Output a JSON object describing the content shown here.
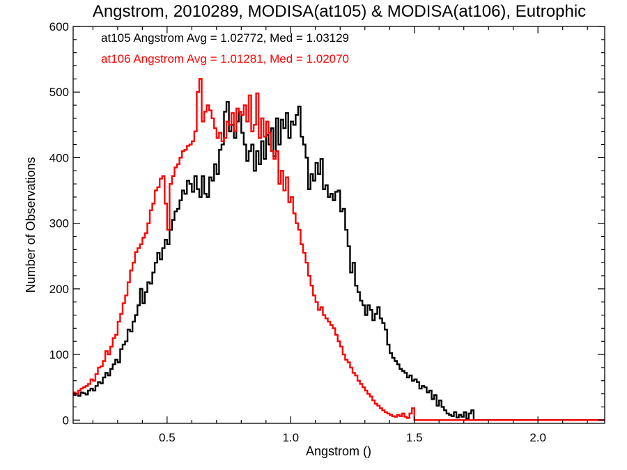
{
  "chart_data": {
    "type": "line",
    "style": "step histogram",
    "title": "Angstrom, 2010289, MODISA(at105) & MODISA(at106), Eutrophic",
    "xlabel": "Angstrom ()",
    "ylabel": "Number of Observations",
    "xlim": [
      0.12,
      2.27
    ],
    "ylim": [
      -5,
      600
    ],
    "x_ticks": [
      0.5,
      1.0,
      1.5,
      2.0
    ],
    "x_tick_labels": [
      "0.5",
      "1.0",
      "1.5",
      "2.0"
    ],
    "y_ticks": [
      0,
      100,
      200,
      300,
      400,
      500,
      600
    ],
    "y_tick_labels": [
      "0",
      "100",
      "200",
      "300",
      "400",
      "500",
      "600"
    ],
    "grid": false,
    "annotations": [
      {
        "text": "at105 Angstrom Avg = 1.02772, Med = 1.03129",
        "color": "#000000"
      },
      {
        "text": "at106 Angstrom Avg = 1.01281, Med = 1.02070",
        "color": "#ff0000"
      }
    ],
    "series": [
      {
        "color": "#000000",
        "bin_width": 0.01,
        "x_start": 0.12,
        "values": [
          38,
          40,
          37,
          42,
          41,
          39,
          45,
          48,
          45,
          52,
          58,
          56,
          65,
          72,
          68,
          78,
          85,
          92,
          88,
          108,
          115,
          120,
          138,
          135,
          150,
          160,
          175,
          200,
          178,
          195,
          210,
          208,
          225,
          240,
          255,
          245,
          262,
          275,
          268,
          290,
          305,
          318,
          322,
          335,
          350,
          345,
          365,
          360,
          348,
          372,
          352,
          340,
          372,
          345,
          340,
          370,
          365,
          390,
          375,
          412,
          420,
          470,
          485,
          440,
          450,
          430,
          455,
          470,
          438,
          420,
          395,
          410,
          420,
          380,
          410,
          390,
          425,
          398,
          435,
          420,
          445,
          402,
          460,
          420,
          458,
          445,
          468,
          430,
          455,
          450,
          465,
          478,
          432,
          420,
          400,
          352,
          375,
          365,
          392,
          375,
          398,
          352,
          358,
          340,
          345,
          335,
          348,
          350,
          318,
          322,
          290,
          265,
          225,
          240,
          205,
          195,
          182,
          175,
          160,
          175,
          168,
          152,
          162,
          172,
          155,
          148,
          138,
          115,
          102,
          95,
          90,
          85,
          78,
          75,
          72,
          65,
          68,
          60,
          62,
          58,
          48,
          52,
          50,
          42,
          45,
          32,
          38,
          22,
          30,
          20,
          15,
          10,
          8,
          6,
          12,
          4,
          8,
          5,
          12,
          2,
          10,
          15,
          0,
          0,
          0,
          0,
          0,
          0,
          0,
          0,
          0,
          0,
          0,
          0,
          0,
          0,
          0,
          0,
          0,
          0,
          0,
          0,
          0,
          0,
          0,
          0,
          0,
          0,
          0,
          0,
          0,
          0,
          0,
          0,
          0,
          0,
          0,
          0,
          0,
          0,
          0,
          0,
          0,
          0,
          0,
          0,
          0,
          0,
          0,
          0,
          0,
          0,
          0,
          0,
          0,
          0,
          0,
          0,
          0,
          0,
          0,
          0,
          0,
          0,
          0
        ]
      },
      {
        "color": "#ff0000",
        "bin_width": 0.01,
        "x_start": 0.12,
        "values": [
          42,
          40,
          45,
          48,
          50,
          52,
          55,
          62,
          60,
          70,
          80,
          82,
          90,
          105,
          100,
          112,
          125,
          130,
          150,
          162,
          178,
          190,
          210,
          228,
          240,
          256,
          262,
          268,
          278,
          285,
          300,
          320,
          330,
          350,
          355,
          368,
          372,
          330,
          290,
          360,
          372,
          385,
          390,
          400,
          410,
          412,
          418,
          420,
          425,
          440,
          500,
          520,
          455,
          470,
          480,
          472,
          460,
          445,
          430,
          438,
          425,
          430,
          455,
          450,
          468,
          440,
          475,
          470,
          465,
          480,
          455,
          495,
          440,
          450,
          498,
          430,
          460,
          432,
          455,
          438,
          410,
          398,
          410,
          360,
          380,
          350,
          370,
          332,
          340,
          315,
          300,
          290,
          268,
          255,
          240,
          220,
          205,
          190,
          180,
          168,
          172,
          160,
          155,
          150,
          145,
          140,
          130,
          120,
          112,
          100,
          92,
          88,
          80,
          72,
          68,
          60,
          55,
          50,
          45,
          40,
          36,
          30,
          25,
          22,
          18,
          15,
          12,
          10,
          8,
          6,
          5,
          8,
          6,
          10,
          5,
          3,
          10,
          18,
          0,
          0,
          0,
          0,
          0,
          0,
          0,
          0,
          0,
          0,
          0,
          0,
          0,
          0,
          0,
          0,
          0,
          0,
          0,
          0,
          0,
          0,
          0,
          0,
          0,
          0,
          0,
          0,
          0,
          0,
          0,
          0,
          0,
          0,
          0,
          0,
          0,
          0,
          0,
          0,
          0,
          0,
          0,
          0,
          0,
          0,
          0,
          0,
          0,
          0,
          0,
          0,
          0,
          0,
          0,
          0,
          0,
          0,
          0,
          0,
          0,
          0,
          0,
          0,
          0,
          0,
          0,
          0,
          0,
          0,
          0,
          0,
          0,
          0,
          0,
          0,
          0,
          0,
          0,
          0,
          0,
          0,
          0,
          0,
          0,
          0,
          0,
          0,
          0,
          0
        ]
      }
    ]
  }
}
